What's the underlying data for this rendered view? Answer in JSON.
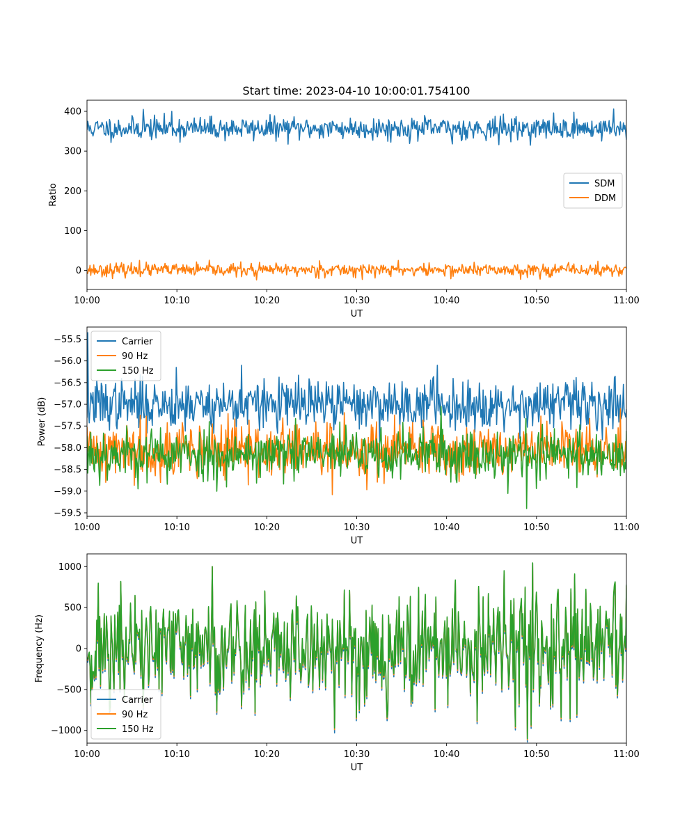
{
  "figure": {
    "title": "Start time: 2023-04-10 10:00:01.754100"
  },
  "chart_data": [
    {
      "type": "line",
      "xlabel": "UT",
      "ylabel": "Ratio",
      "x_ticks": [
        "10:00",
        "10:10",
        "10:20",
        "10:30",
        "10:40",
        "10:50",
        "11:00"
      ],
      "xlim_minutes": [
        0,
        60
      ],
      "ylim": [
        -48,
        428
      ],
      "y_ticks": [
        0,
        100,
        200,
        300,
        400
      ],
      "legend_position": "center-right",
      "series": [
        {
          "name": "SDM",
          "color": "#1f77b4",
          "mean": 357,
          "spread": 14,
          "spikes": [
            [
              6.3,
              405
            ],
            [
              9.4,
              400
            ],
            [
              58.6,
              406
            ],
            [
              45.8,
              316
            ],
            [
              40.6,
              318
            ]
          ],
          "seed": 11
        },
        {
          "name": "DDM",
          "color": "#ff7f0e",
          "mean": 1,
          "spread": 8,
          "spikes": [
            [
              5.8,
              25
            ],
            [
              25.9,
              24
            ],
            [
              34.6,
              25
            ],
            [
              18.9,
              -24
            ],
            [
              50.4,
              -22
            ]
          ],
          "seed": 23
        }
      ]
    },
    {
      "type": "line",
      "xlabel": "UT",
      "ylabel": "Power (dB)",
      "x_ticks": [
        "10:00",
        "10:10",
        "10:20",
        "10:30",
        "10:40",
        "10:50",
        "11:00"
      ],
      "xlim_minutes": [
        0,
        60
      ],
      "ylim": [
        -59.58,
        -55.22
      ],
      "y_ticks": [
        -55.5,
        -56.0,
        -56.5,
        -57.0,
        -57.5,
        -58.0,
        -58.5,
        -59.0,
        -59.5
      ],
      "y_tick_labels": [
        "−55.5",
        "−56.0",
        "−56.5",
        "−57.0",
        "−57.5",
        "−58.0",
        "−58.5",
        "−59.0",
        "−59.5"
      ],
      "legend_position": "upper-left",
      "series": [
        {
          "name": "Carrier",
          "color": "#1f77b4",
          "mean": -57.0,
          "spread": 0.28,
          "spikes": [
            [
              0.1,
              -55.35
            ],
            [
              17.2,
              -56.1
            ],
            [
              39.0,
              -56.1
            ],
            [
              9.9,
              -56.15
            ]
          ],
          "seed": 37
        },
        {
          "name": "90 Hz",
          "color": "#ff7f0e",
          "mean": -58.05,
          "spread": 0.32,
          "spikes": [
            [
              27.3,
              -59.08
            ],
            [
              5.9,
              -57.25
            ],
            [
              59.3,
              -57.1
            ]
          ],
          "seed": 41
        },
        {
          "name": "150 Hz",
          "color": "#2ca02c",
          "mean": -58.15,
          "spread": 0.3,
          "spikes": [
            [
              48.9,
              -59.4
            ],
            [
              39.4,
              -57.05
            ],
            [
              0.4,
              -57.65
            ]
          ],
          "seed": 53
        }
      ]
    },
    {
      "type": "line",
      "xlabel": "UT",
      "ylabel": "Frequency (Hz)",
      "x_ticks": [
        "10:00",
        "10:10",
        "10:20",
        "10:30",
        "10:40",
        "10:50",
        "11:00"
      ],
      "xlim_minutes": [
        0,
        60
      ],
      "ylim": [
        -1155,
        1155
      ],
      "y_ticks": [
        1000,
        500,
        0,
        -500,
        -1000
      ],
      "y_tick_labels": [
        "1000",
        "500",
        "0",
        "−500",
        "−1000"
      ],
      "legend_position": "lower-left",
      "series": [
        {
          "name": "Carrier",
          "color": "#1f77b4",
          "mean": -60,
          "spread": 340,
          "spikes": [
            [
              27.5,
              -1030
            ],
            [
              49.6,
              1040
            ],
            [
              13.9,
              1000
            ]
          ],
          "seed": 71,
          "shared": true,
          "offset": -40
        },
        {
          "name": "90 Hz",
          "color": "#ff7f0e",
          "mean": -20,
          "spread": 340,
          "spikes": [
            [
              27.5,
              -990
            ],
            [
              49.6,
              1040
            ],
            [
              13.9,
              1000
            ]
          ],
          "seed": 71,
          "shared": true,
          "offset": -15
        },
        {
          "name": "150 Hz",
          "color": "#2ca02c",
          "mean": 0,
          "spread": 340,
          "spikes": [
            [
              27.5,
              -970
            ],
            [
              49.6,
              1045
            ],
            [
              13.9,
              1000
            ]
          ],
          "seed": 71,
          "shared": true,
          "offset": 0
        }
      ]
    }
  ]
}
